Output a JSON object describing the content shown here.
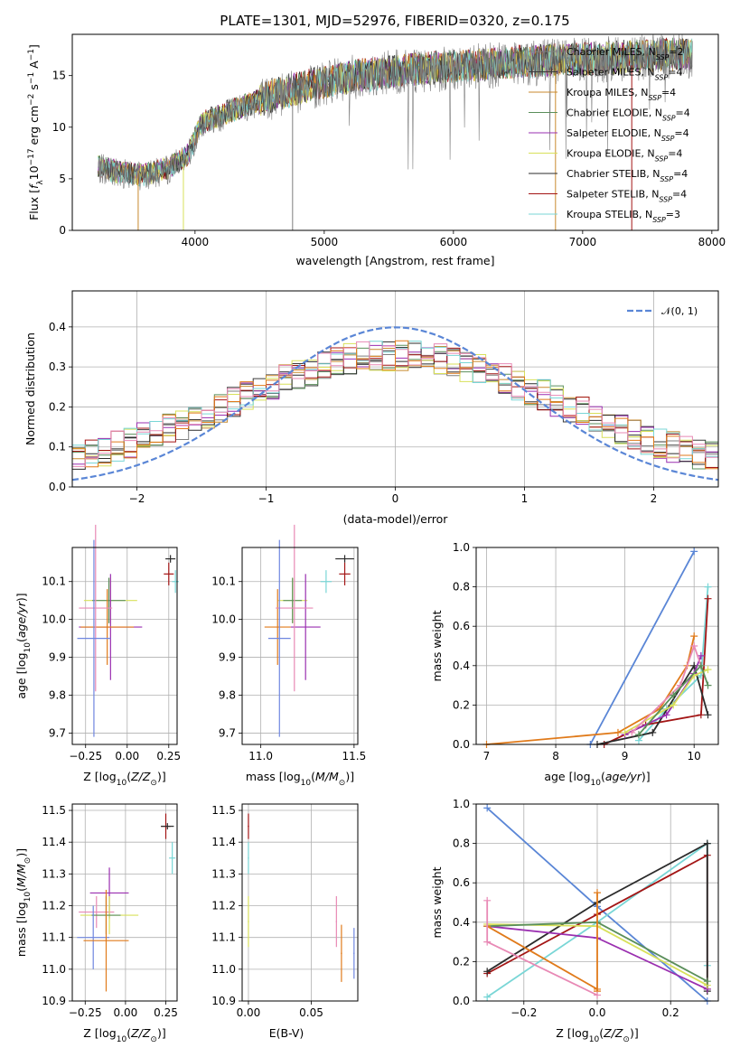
{
  "figure": {
    "title": "PLATE=1301, MJD=52976, FIBERID=0320, z=0.175"
  },
  "series_colors": {
    "Chabrier MILES": "#7f7f7f",
    "Salpeter MILES": "#3b3b3b",
    "Kroupa MILES": "#c88a2e",
    "Chabrier ELODIE": "#5b8f5b",
    "Salpeter ELODIE": "#9a2fb0",
    "Kroupa ELODIE": "#d8e05a",
    "Chabrier STELIB": "#2b2b2b",
    "Salpeter STELIB": "#a31515",
    "Kroupa STELIB": "#79d6d6",
    "Gaussian": "#5a86d6",
    "Orange": "#e07a1a",
    "Pink": "#e889b5",
    "Blue": "#6f86e0",
    "Green": "#98d45a"
  },
  "chart_data": [
    {
      "type": "line",
      "panel": "spectrum",
      "xlabel": "wavelength [Angstrom, rest frame]",
      "ylabel": "Flux [f_λ10^-17 erg cm^-2 s^-1 A^-1]",
      "xlim": [
        3050,
        8050
      ],
      "ylim": [
        0,
        19
      ],
      "xticks": [
        4000,
        5000,
        6000,
        7000,
        8000
      ],
      "yticks": [
        0,
        5,
        10,
        15
      ],
      "grid": false,
      "legend": "upper-right",
      "legend_entries": [
        "Chabrier MILES, N_SSP=2",
        "Salpeter MILES, N_SSP=4",
        "Kroupa MILES, N_SSP=4",
        "Chabrier ELODIE, N_SSP=4",
        "Salpeter ELODIE, N_SSP=4",
        "Kroupa ELODIE, N_SSP=4",
        "Chabrier STELIB, N_SSP=4",
        "Salpeter STELIB, N_SSP=4",
        "Kroupa STELIB, N_SSP=3"
      ],
      "continuum": {
        "x": [
          3250,
          3400,
          3600,
          3800,
          3950,
          4050,
          4300,
          4600,
          4900,
          5200,
          5600,
          6000,
          6400,
          6800,
          7200,
          7600,
          7850
        ],
        "y": [
          6.3,
          5.8,
          5.5,
          6.2,
          7.5,
          10.5,
          11.8,
          13.2,
          14.2,
          15.0,
          15.6,
          16.0,
          16.3,
          16.6,
          16.8,
          17.1,
          17.2
        ]
      }
    },
    {
      "type": "histogram",
      "panel": "residuals",
      "xlabel": "(data-model)/error",
      "ylabel": "Normed distribution",
      "xlim": [
        -2.5,
        2.5
      ],
      "ylim": [
        0,
        0.49
      ],
      "xticks": [
        -2,
        -1,
        0,
        1,
        2
      ],
      "yticks": [
        0.0,
        0.1,
        0.2,
        0.3,
        0.4
      ],
      "grid": true,
      "legend": "upper-right",
      "legend_entries": [
        "𝒩(0, 1)"
      ],
      "bin_width": 0.1,
      "bin_start": -2.5
    },
    {
      "type": "scatter",
      "panel": "age-vs-Z",
      "xlabel": "Z [log10(Z/Z☉)]",
      "ylabel": "age [log10(age/yr)]",
      "xlim": [
        -0.33,
        0.3
      ],
      "ylim": [
        9.67,
        10.19
      ],
      "xticks": [
        -0.25,
        0.0,
        0.25
      ],
      "yticks": [
        9.7,
        9.8,
        9.9,
        10.0,
        10.1
      ],
      "points": [
        {
          "color": "Chabrier STELIB",
          "x": 0.26,
          "y": 10.16,
          "xerr": 0.03,
          "yerr": 0.01
        },
        {
          "color": "Salpeter STELIB",
          "x": 0.25,
          "y": 10.12,
          "xerr": 0.03,
          "yerr": 0.03
        },
        {
          "color": "Kroupa STELIB",
          "x": 0.29,
          "y": 10.1,
          "xerr": 0.02,
          "yerr": 0.03
        },
        {
          "color": "Kroupa ELODIE",
          "x": -0.1,
          "y": 10.05,
          "xerr": 0.16,
          "yerr": 0.06
        },
        {
          "color": "Chabrier ELODIE",
          "x": -0.11,
          "y": 10.05,
          "xerr": 0.1,
          "yerr": 0.06
        },
        {
          "color": "Salpeter ELODIE",
          "x": -0.1,
          "y": 9.98,
          "xerr": 0.19,
          "yerr": 0.14
        },
        {
          "color": "Orange",
          "x": -0.12,
          "y": 9.98,
          "xerr": 0.16,
          "yerr": 0.1
        },
        {
          "color": "Pink",
          "x": -0.19,
          "y": 10.03,
          "xerr": 0.1,
          "yerr": 0.22
        },
        {
          "color": "Blue",
          "x": -0.2,
          "y": 9.95,
          "xerr": 0.1,
          "yerr": 0.26
        }
      ]
    },
    {
      "type": "scatter",
      "panel": "age-vs-mass",
      "xlabel": "mass [log10(M/M☉)]",
      "ylabel": "",
      "xlim": [
        10.9,
        11.52
      ],
      "ylim": [
        9.67,
        10.19
      ],
      "xticks": [
        11.0,
        11.5
      ],
      "yticks": [
        9.7,
        9.8,
        9.9,
        10.0,
        10.1
      ],
      "points": [
        {
          "color": "Chabrier STELIB",
          "x": 11.45,
          "y": 10.16,
          "xerr": 0.05,
          "yerr": 0.01
        },
        {
          "color": "Salpeter STELIB",
          "x": 11.45,
          "y": 10.12,
          "xerr": 0.03,
          "yerr": 0.03
        },
        {
          "color": "Kroupa STELIB",
          "x": 11.35,
          "y": 10.1,
          "xerr": 0.03,
          "yerr": 0.03
        },
        {
          "color": "Kroupa ELODIE",
          "x": 11.17,
          "y": 10.05,
          "xerr": 0.08,
          "yerr": 0.06
        },
        {
          "color": "Chabrier ELODIE",
          "x": 11.17,
          "y": 10.05,
          "xerr": 0.05,
          "yerr": 0.06
        },
        {
          "color": "Salpeter ELODIE",
          "x": 11.24,
          "y": 9.98,
          "xerr": 0.08,
          "yerr": 0.14
        },
        {
          "color": "Orange",
          "x": 11.09,
          "y": 9.98,
          "xerr": 0.07,
          "yerr": 0.1
        },
        {
          "color": "Pink",
          "x": 11.18,
          "y": 10.03,
          "xerr": 0.1,
          "yerr": 0.22
        },
        {
          "color": "Blue",
          "x": 11.1,
          "y": 9.95,
          "xerr": 0.06,
          "yerr": 0.26
        }
      ]
    },
    {
      "type": "line",
      "panel": "mass-weight-vs-age",
      "xlabel": "age [log10(age/yr)]",
      "ylabel": "mass weight",
      "xlim": [
        6.85,
        10.35
      ],
      "ylim": [
        0,
        1
      ],
      "xticks": [
        7,
        8,
        9,
        10
      ],
      "yticks": [
        0.0,
        0.2,
        0.4,
        0.6,
        0.8,
        1.0
      ],
      "grid": true,
      "series": [
        {
          "color": "Gaussian",
          "x": [
            8.5,
            10.0
          ],
          "y": [
            0.0,
            0.98
          ]
        },
        {
          "color": "Orange",
          "x": [
            7.0,
            8.9,
            9.5,
            9.9,
            10.0
          ],
          "y": [
            0.0,
            0.06,
            0.18,
            0.4,
            0.55
          ]
        },
        {
          "color": "Kroupa STELIB",
          "x": [
            9.2,
            9.6,
            10.1,
            10.2
          ],
          "y": [
            0.02,
            0.18,
            0.35,
            0.8
          ]
        },
        {
          "color": "Salpeter STELIB",
          "x": [
            8.7,
            9.3,
            10.1,
            10.2
          ],
          "y": [
            0.0,
            0.1,
            0.15,
            0.74
          ]
        },
        {
          "color": "Chabrier STELIB",
          "x": [
            8.6,
            9.4,
            10.0,
            10.2
          ],
          "y": [
            0.0,
            0.06,
            0.4,
            0.15
          ]
        },
        {
          "color": "Salpeter ELODIE",
          "x": [
            9.0,
            9.6,
            10.0,
            10.1
          ],
          "y": [
            0.05,
            0.15,
            0.36,
            0.45
          ]
        },
        {
          "color": "Kroupa ELODIE",
          "x": [
            9.0,
            9.7,
            10.0,
            10.2
          ],
          "y": [
            0.06,
            0.2,
            0.35,
            0.38
          ]
        },
        {
          "color": "Pink",
          "x": [
            9.1,
            9.8,
            10.0,
            10.1
          ],
          "y": [
            0.06,
            0.3,
            0.5,
            0.4
          ]
        },
        {
          "color": "Chabrier ELODIE",
          "x": [
            9.2,
            9.7,
            10.1,
            10.2
          ],
          "y": [
            0.05,
            0.25,
            0.4,
            0.3
          ]
        }
      ]
    },
    {
      "type": "scatter",
      "panel": "mass-vs-Z",
      "xlabel": "Z [log10(Z/Z☉)]",
      "ylabel": "mass [log10(M/M☉)]",
      "xlim": [
        -0.33,
        0.32
      ],
      "ylim": [
        10.9,
        11.52
      ],
      "xticks": [
        -0.25,
        0.0,
        0.25
      ],
      "yticks": [
        10.9,
        11.0,
        11.1,
        11.2,
        11.3,
        11.4,
        11.5
      ],
      "points": [
        {
          "color": "Salpeter STELIB",
          "x": 0.25,
          "y": 11.45,
          "xerr": 0.03,
          "yerr": 0.04
        },
        {
          "color": "Chabrier STELIB",
          "x": 0.26,
          "y": 11.45,
          "xerr": 0.04,
          "yerr": 0.01
        },
        {
          "color": "Kroupa STELIB",
          "x": 0.29,
          "y": 11.35,
          "xerr": 0.02,
          "yerr": 0.05
        },
        {
          "color": "Salpeter ELODIE",
          "x": -0.1,
          "y": 11.24,
          "xerr": 0.12,
          "yerr": 0.08
        },
        {
          "color": "Pink",
          "x": -0.18,
          "y": 11.18,
          "xerr": 0.11,
          "yerr": 0.05
        },
        {
          "color": "Kroupa ELODIE",
          "x": -0.1,
          "y": 11.17,
          "xerr": 0.18,
          "yerr": 0.06
        },
        {
          "color": "Chabrier ELODIE",
          "x": -0.12,
          "y": 11.17,
          "xerr": 0.09,
          "yerr": 0.06
        },
        {
          "color": "Blue",
          "x": -0.2,
          "y": 11.1,
          "xerr": 0.1,
          "yerr": 0.1
        },
        {
          "color": "Orange",
          "x": -0.12,
          "y": 11.09,
          "xerr": 0.14,
          "yerr": 0.16
        }
      ]
    },
    {
      "type": "scatter",
      "panel": "mass-vs-EBV",
      "xlabel": "E(B-V)",
      "ylabel": "",
      "xlim": [
        -0.005,
        0.087
      ],
      "ylim": [
        10.9,
        11.52
      ],
      "xticks": [
        0.0,
        0.05
      ],
      "yticks": [
        10.9,
        11.0,
        11.1,
        11.2,
        11.3,
        11.4,
        11.5
      ],
      "points": [
        {
          "color": "Salpeter STELIB",
          "x": 0.0,
          "y": 11.45,
          "xerr": 0.0005,
          "yerr": 0.04
        },
        {
          "color": "Kroupa STELIB",
          "x": 0.0,
          "y": 11.35,
          "xerr": 0.0005,
          "yerr": 0.05
        },
        {
          "color": "Kroupa ELODIE",
          "x": 0.0,
          "y": 11.15,
          "xerr": 0.0005,
          "yerr": 0.08
        },
        {
          "color": "Pink",
          "x": 0.07,
          "y": 11.15,
          "xerr": 0.0005,
          "yerr": 0.08
        },
        {
          "color": "Orange",
          "x": 0.074,
          "y": 11.05,
          "xerr": 0.0005,
          "yerr": 0.09
        },
        {
          "color": "Blue",
          "x": 0.084,
          "y": 11.05,
          "xerr": 0.0005,
          "yerr": 0.08
        }
      ]
    },
    {
      "type": "line",
      "panel": "mass-weight-vs-Z",
      "xlabel": "Z [log10(Z/Z☉)]",
      "ylabel": "mass weight",
      "xlim": [
        -0.33,
        0.33
      ],
      "ylim": [
        0,
        1
      ],
      "xticks": [
        -0.2,
        0.0,
        0.2
      ],
      "yticks": [
        0.0,
        0.2,
        0.4,
        0.6,
        0.8,
        1.0
      ],
      "grid": true,
      "series": [
        {
          "color": "Gaussian",
          "x": [
            -0.3,
            0.0,
            0.3
          ],
          "y": [
            0.98,
            0.48,
            0.0
          ]
        },
        {
          "color": "Kroupa STELIB",
          "x": [
            -0.3,
            0.0,
            0.3,
            0.3
          ],
          "y": [
            0.02,
            0.4,
            0.8,
            0.18
          ]
        },
        {
          "color": "Salpeter STELIB",
          "x": [
            -0.3,
            0.0,
            0.3,
            0.3
          ],
          "y": [
            0.14,
            0.44,
            0.74,
            0.06
          ]
        },
        {
          "color": "Chabrier STELIB",
          "x": [
            -0.3,
            0.0,
            0.3,
            0.3
          ],
          "y": [
            0.15,
            0.5,
            0.8,
            0.05
          ]
        },
        {
          "color": "Salpeter ELODIE",
          "x": [
            -0.3,
            0.0,
            0.3
          ],
          "y": [
            0.38,
            0.32,
            0.06
          ]
        },
        {
          "color": "Kroupa ELODIE",
          "x": [
            -0.3,
            0.0,
            0.3
          ],
          "y": [
            0.39,
            0.38,
            0.08
          ]
        },
        {
          "color": "Chabrier ELODIE",
          "x": [
            -0.3,
            0.0,
            0.3
          ],
          "y": [
            0.38,
            0.4,
            0.1
          ]
        },
        {
          "color": "Orange",
          "x": [
            -0.3,
            0.0,
            0.0,
            0.0
          ],
          "y": [
            0.38,
            0.06,
            0.55,
            0.05
          ]
        },
        {
          "color": "Pink",
          "x": [
            -0.3,
            -0.3,
            0.0
          ],
          "y": [
            0.51,
            0.3,
            0.03
          ]
        }
      ]
    }
  ]
}
